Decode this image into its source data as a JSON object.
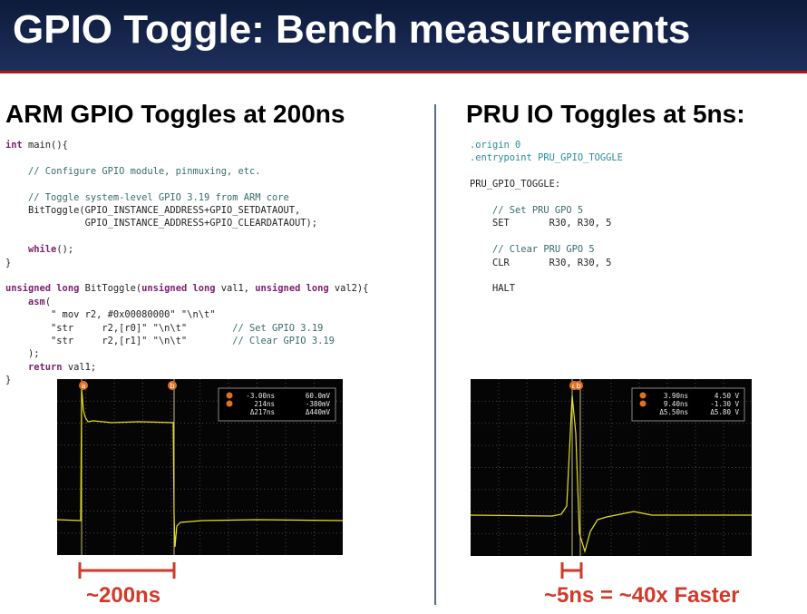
{
  "title": "GPIO Toggle: Bench measurements",
  "left": {
    "heading": "ARM GPIO Toggles at 200ns",
    "code": [
      [
        "int main(){"
      ],
      [
        "    // Configure GPIO module, pinmuxing, etc."
      ],
      [
        "    // Toggle system-level GPIO 3.19 from ARM core",
        "    BitToggle(GPIO_INSTANCE_ADDRESS+GPIO_SETDATAOUT,",
        "              GPIO_INSTANCE_ADDRESS+GPIO_CLEARDATAOUT);"
      ],
      [
        "    while();",
        "}"
      ],
      [
        "unsigned long BitToggle(unsigned long val1, unsigned long val2){",
        "    asm(",
        "        \" mov r2, #0x00080000\" \"\\n\\t\"",
        "        \"str     r2,[r0]\" \"\\n\\t\"        // Set GPIO 3.19",
        "        \"str     r2,[r1]\" \"\\n\\t\"        // Clear GPIO 3.19",
        "    );",
        "    return val1;",
        "}"
      ]
    ],
    "scope": {
      "markers": [
        "a",
        "b"
      ],
      "readout": [
        [
          "-3.00ns",
          "60.0mV"
        ],
        [
          "214ns",
          "-380mV"
        ],
        [
          "Δ217ns",
          "Δ440mV"
        ]
      ]
    },
    "caption": "~200ns"
  },
  "right": {
    "heading": "PRU IO Toggles at 5ns:",
    "code": [
      [
        ".origin 0",
        ".entrypoint PRU_GPIO_TOGGLE"
      ],
      [
        "PRU_GPIO_TOGGLE:"
      ],
      [
        "    // Set PRU GPO 5",
        "    SET       R30, R30, 5"
      ],
      [
        "    // Clear PRU GPO 5",
        "    CLR       R30, R30, 5"
      ],
      [
        "    HALT"
      ]
    ],
    "scope": {
      "markers": [
        "a",
        "b"
      ],
      "readout": [
        [
          "3.90ns",
          "4.50 V"
        ],
        [
          "9.40ns",
          "-1.30 V"
        ],
        [
          "Δ5.50ns",
          "Δ5.80 V"
        ]
      ]
    },
    "caption": "~5ns = ~40x Faster"
  }
}
